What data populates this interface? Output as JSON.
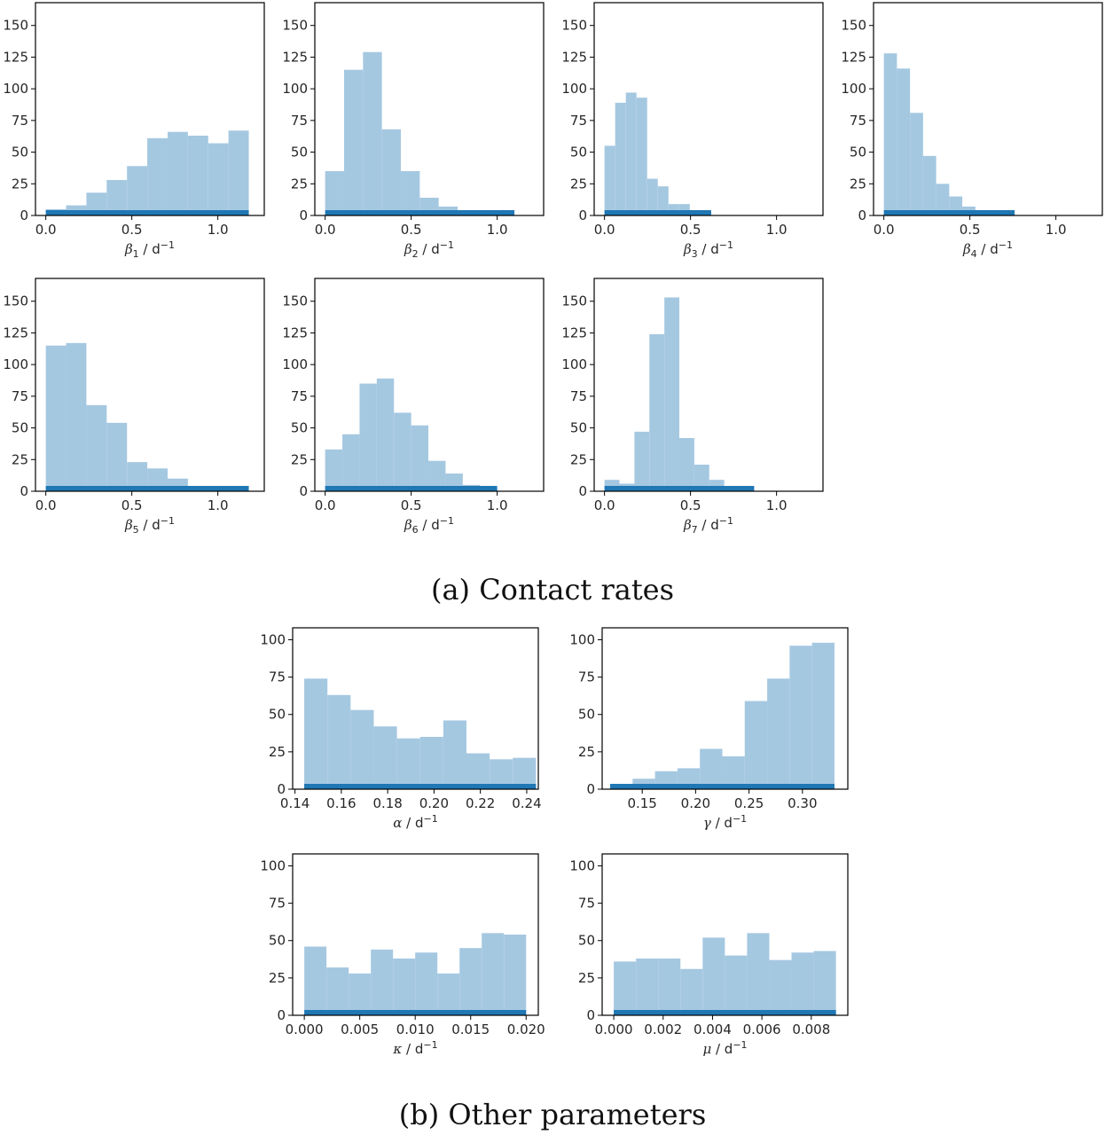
{
  "captions": {
    "contact": "(a) Contact rates",
    "other": "(b) Other parameters"
  },
  "colors": {
    "bar": "#a5c8e1",
    "rug": "#1f77b4",
    "axis": "#000000"
  },
  "chart_data": [
    {
      "type": "bar",
      "group": "contact",
      "xlabel": {
        "sym": "β",
        "sub": "1",
        "unit": " / d",
        "sup": "−1"
      },
      "xlim": [
        -0.06,
        1.27
      ],
      "ylim": [
        0,
        168
      ],
      "xticks": [
        0,
        0.5,
        1.0
      ],
      "xtick_labels": [
        "0.0",
        "0.5",
        "1.0"
      ],
      "yticks": [
        0,
        25,
        50,
        75,
        100,
        125,
        150
      ],
      "ytick_labels": [
        "0",
        "25",
        "50",
        "75",
        "100",
        "125",
        "150"
      ],
      "bin_edges": [
        0,
        0.118,
        0.236,
        0.354,
        0.472,
        0.59,
        0.708,
        0.826,
        0.944,
        1.062,
        1.18
      ],
      "values": [
        5,
        8,
        18,
        28,
        39,
        61,
        66,
        63,
        57,
        67
      ],
      "rug": [
        0,
        1.18
      ]
    },
    {
      "type": "bar",
      "group": "contact",
      "xlabel": {
        "sym": "β",
        "sub": "2",
        "unit": " / d",
        "sup": "−1"
      },
      "xlim": [
        -0.06,
        1.27
      ],
      "ylim": [
        0,
        168
      ],
      "xticks": [
        0,
        0.5,
        1.0
      ],
      "xtick_labels": [
        "0.0",
        "0.5",
        "1.0"
      ],
      "yticks": [
        0,
        25,
        50,
        75,
        100,
        125,
        150
      ],
      "ytick_labels": [
        "0",
        "25",
        "50",
        "75",
        "100",
        "125",
        "150"
      ],
      "bin_edges": [
        0,
        0.11,
        0.22,
        0.33,
        0.44,
        0.55,
        0.66,
        0.77,
        0.88,
        0.99,
        1.1
      ],
      "values": [
        35,
        115,
        129,
        68,
        35,
        14,
        7,
        3,
        2,
        1
      ],
      "rug": [
        0,
        1.1
      ]
    },
    {
      "type": "bar",
      "group": "contact",
      "xlabel": {
        "sym": "β",
        "sub": "3",
        "unit": " / d",
        "sup": "−1"
      },
      "xlim": [
        -0.06,
        1.27
      ],
      "ylim": [
        0,
        168
      ],
      "xticks": [
        0,
        0.5,
        1.0
      ],
      "xtick_labels": [
        "0.0",
        "0.5",
        "1.0"
      ],
      "yticks": [
        0,
        25,
        50,
        75,
        100,
        125,
        150
      ],
      "ytick_labels": [
        "0",
        "25",
        "50",
        "75",
        "100",
        "125",
        "150"
      ],
      "bin_edges": [
        0,
        0.062,
        0.124,
        0.186,
        0.248,
        0.31,
        0.372,
        0.434,
        0.496,
        0.558,
        0.62
      ],
      "values": [
        55,
        89,
        97,
        93,
        29,
        23,
        9,
        9,
        2,
        1
      ],
      "rug": [
        0,
        0.62
      ]
    },
    {
      "type": "bar",
      "group": "contact",
      "xlabel": {
        "sym": "β",
        "sub": "4",
        "unit": " / d",
        "sup": "−1"
      },
      "xlim": [
        -0.06,
        1.27
      ],
      "ylim": [
        0,
        168
      ],
      "xticks": [
        0,
        0.5,
        1.0
      ],
      "xtick_labels": [
        "0.0",
        "0.5",
        "1.0"
      ],
      "yticks": [
        0,
        25,
        50,
        75,
        100,
        125,
        150
      ],
      "ytick_labels": [
        "0",
        "25",
        "50",
        "75",
        "100",
        "125",
        "150"
      ],
      "bin_edges": [
        0,
        0.076,
        0.152,
        0.228,
        0.304,
        0.38,
        0.456,
        0.532,
        0.608,
        0.684,
        0.76
      ],
      "values": [
        128,
        116,
        81,
        47,
        25,
        15,
        7,
        3,
        1,
        1
      ],
      "rug": [
        0,
        0.76
      ]
    },
    {
      "type": "bar",
      "group": "contact",
      "xlabel": {
        "sym": "β",
        "sub": "5",
        "unit": " / d",
        "sup": "−1"
      },
      "xlim": [
        -0.06,
        1.27
      ],
      "ylim": [
        0,
        168
      ],
      "xticks": [
        0,
        0.5,
        1.0
      ],
      "xtick_labels": [
        "0.0",
        "0.5",
        "1.0"
      ],
      "yticks": [
        0,
        25,
        50,
        75,
        100,
        125,
        150
      ],
      "ytick_labels": [
        "0",
        "25",
        "50",
        "75",
        "100",
        "125",
        "150"
      ],
      "bin_edges": [
        0,
        0.118,
        0.236,
        0.354,
        0.472,
        0.59,
        0.708,
        0.826,
        0.944,
        1.062,
        1.18
      ],
      "values": [
        115,
        117,
        68,
        54,
        23,
        18,
        10,
        3,
        2,
        4
      ],
      "rug": [
        0,
        1.18
      ]
    },
    {
      "type": "bar",
      "group": "contact",
      "xlabel": {
        "sym": "β",
        "sub": "6",
        "unit": " / d",
        "sup": "−1"
      },
      "xlim": [
        -0.06,
        1.27
      ],
      "ylim": [
        0,
        168
      ],
      "xticks": [
        0,
        0.5,
        1.0
      ],
      "xtick_labels": [
        "0.0",
        "0.5",
        "1.0"
      ],
      "yticks": [
        0,
        25,
        50,
        75,
        100,
        125,
        150
      ],
      "ytick_labels": [
        "0",
        "25",
        "50",
        "75",
        "100",
        "125",
        "150"
      ],
      "bin_edges": [
        0,
        0.1,
        0.2,
        0.3,
        0.4,
        0.5,
        0.6,
        0.7,
        0.8,
        0.9,
        1.0
      ],
      "values": [
        33,
        45,
        85,
        89,
        62,
        52,
        24,
        14,
        5,
        2
      ],
      "rug": [
        0,
        1.0
      ]
    },
    {
      "type": "bar",
      "group": "contact",
      "xlabel": {
        "sym": "β",
        "sub": "7",
        "unit": " / d",
        "sup": "−1"
      },
      "xlim": [
        -0.06,
        1.27
      ],
      "ylim": [
        0,
        168
      ],
      "xticks": [
        0,
        0.5,
        1.0
      ],
      "xtick_labels": [
        "0.0",
        "0.5",
        "1.0"
      ],
      "yticks": [
        0,
        25,
        50,
        75,
        100,
        125,
        150
      ],
      "ytick_labels": [
        "0",
        "25",
        "50",
        "75",
        "100",
        "125",
        "150"
      ],
      "bin_edges": [
        0,
        0.087,
        0.174,
        0.261,
        0.348,
        0.435,
        0.522,
        0.609,
        0.696,
        0.783,
        0.87
      ],
      "values": [
        9,
        6,
        47,
        124,
        153,
        42,
        21,
        9,
        1,
        1
      ],
      "rug": [
        0,
        0.87
      ]
    },
    {
      "type": "bar",
      "group": "other",
      "xlabel": {
        "sym": "α",
        "sub": "",
        "unit": " / d",
        "sup": "−1"
      },
      "xlim": [
        0.139,
        0.245
      ],
      "ylim": [
        0,
        108
      ],
      "xticks": [
        0.14,
        0.16,
        0.18,
        0.2,
        0.22,
        0.24
      ],
      "xtick_labels": [
        "0.14",
        "0.16",
        "0.18",
        "0.20",
        "0.22",
        "0.24"
      ],
      "yticks": [
        0,
        25,
        50,
        75,
        100
      ],
      "ytick_labels": [
        "0",
        "25",
        "50",
        "75",
        "100"
      ],
      "bin_edges": [
        0.144,
        0.154,
        0.164,
        0.174,
        0.184,
        0.194,
        0.204,
        0.214,
        0.224,
        0.234,
        0.244
      ],
      "values": [
        74,
        63,
        53,
        42,
        34,
        35,
        46,
        24,
        20,
        21
      ],
      "rug": [
        0.144,
        0.244
      ]
    },
    {
      "type": "bar",
      "group": "other",
      "xlabel": {
        "sym": "γ",
        "sub": "",
        "unit": " / d",
        "sup": "−1"
      },
      "xlim": [
        0.1125,
        0.3425
      ],
      "ylim": [
        0,
        108
      ],
      "xticks": [
        0.15,
        0.2,
        0.25,
        0.3
      ],
      "xtick_labels": [
        "0.15",
        "0.20",
        "0.25",
        "0.30"
      ],
      "yticks": [
        0,
        25,
        50,
        75,
        100
      ],
      "ytick_labels": [
        "0",
        "25",
        "50",
        "75",
        "100"
      ],
      "bin_edges": [
        0.12,
        0.141,
        0.162,
        0.183,
        0.204,
        0.225,
        0.246,
        0.267,
        0.288,
        0.309,
        0.33
      ],
      "values": [
        3,
        7,
        12,
        14,
        27,
        22,
        59,
        74,
        96,
        98
      ],
      "rug": [
        0.12,
        0.33
      ]
    },
    {
      "type": "bar",
      "group": "other",
      "xlabel": {
        "sym": "κ",
        "sub": "",
        "unit": " / d",
        "sup": "−1"
      },
      "xlim": [
        -0.00105,
        0.0211
      ],
      "ylim": [
        0,
        108
      ],
      "xticks": [
        0,
        0.005,
        0.01,
        0.015,
        0.02
      ],
      "xtick_labels": [
        "0.000",
        "0.005",
        "0.010",
        "0.015",
        "0.020"
      ],
      "yticks": [
        0,
        25,
        50,
        75,
        100
      ],
      "ytick_labels": [
        "0",
        "25",
        "50",
        "75",
        "100"
      ],
      "bin_edges": [
        0,
        0.002,
        0.004,
        0.006,
        0.008,
        0.01,
        0.012,
        0.014,
        0.016,
        0.018,
        0.02
      ],
      "values": [
        46,
        32,
        28,
        44,
        38,
        42,
        28,
        45,
        55,
        54
      ],
      "rug": [
        0,
        0.02
      ]
    },
    {
      "type": "bar",
      "group": "other",
      "xlabel": {
        "sym": "μ",
        "sub": "",
        "unit": " / d",
        "sup": "−1"
      },
      "xlim": [
        -0.00047,
        0.00948
      ],
      "ylim": [
        0,
        108
      ],
      "xticks": [
        0,
        0.002,
        0.004,
        0.006,
        0.008
      ],
      "xtick_labels": [
        "0.000",
        "0.002",
        "0.004",
        "0.006",
        "0.008"
      ],
      "yticks": [
        0,
        25,
        50,
        75,
        100
      ],
      "ytick_labels": [
        "0",
        "25",
        "50",
        "75",
        "100"
      ],
      "bin_edges": [
        0,
        0.0009,
        0.0018,
        0.0027,
        0.0036,
        0.0045,
        0.0054,
        0.0063,
        0.0072,
        0.0081,
        0.009
      ],
      "values": [
        36,
        38,
        38,
        31,
        52,
        40,
        55,
        37,
        42,
        43
      ],
      "rug": [
        0,
        0.009
      ]
    }
  ]
}
